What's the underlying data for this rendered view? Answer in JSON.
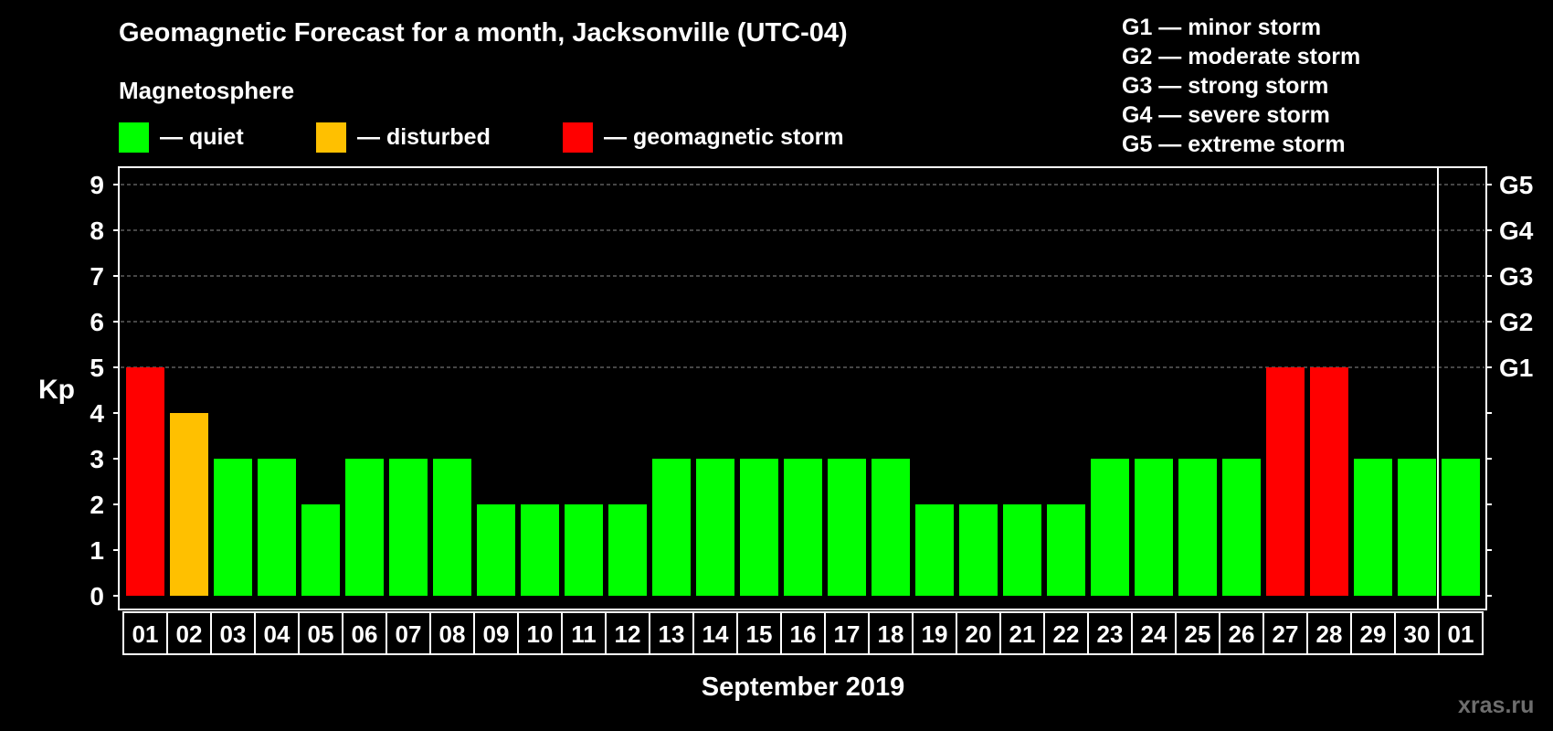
{
  "title": "Geomagnetic Forecast for a month, Jacksonville (UTC-04)",
  "legend": {
    "heading": "Magnetosphere",
    "items": [
      {
        "label": "— quiet",
        "color": "#00ff00"
      },
      {
        "label": "— disturbed",
        "color": "#ffc000"
      },
      {
        "label": "— geomagnetic storm",
        "color": "#ff0000"
      }
    ]
  },
  "g_scale": [
    "G1 — minor storm",
    "G2 — moderate storm",
    "G3 — strong storm",
    "G4 — severe storm",
    "G5 — extreme storm"
  ],
  "watermark": "xras.ru",
  "colors": {
    "quiet": "#00ff00",
    "disturbed": "#ffc000",
    "storm": "#ff0000",
    "background": "#000000",
    "grid": "#8c8c8c"
  },
  "chart_data": {
    "type": "bar",
    "ylabel": "Kp",
    "xlabel": "September 2019",
    "ylim": [
      0,
      9
    ],
    "yticks": [
      "0",
      "1",
      "2",
      "3",
      "4",
      "5",
      "6",
      "7",
      "8",
      "9"
    ],
    "right_axis_labels": [
      {
        "kp": 5,
        "label": "G1"
      },
      {
        "kp": 6,
        "label": "G2"
      },
      {
        "kp": 7,
        "label": "G3"
      },
      {
        "kp": 8,
        "label": "G4"
      },
      {
        "kp": 9,
        "label": "G5"
      }
    ],
    "grid_dashed_at": [
      5,
      6,
      7,
      8,
      9
    ],
    "categories": [
      "01",
      "02",
      "03",
      "04",
      "05",
      "06",
      "07",
      "08",
      "09",
      "10",
      "11",
      "12",
      "13",
      "14",
      "15",
      "16",
      "17",
      "18",
      "19",
      "20",
      "21",
      "22",
      "23",
      "24",
      "25",
      "26",
      "27",
      "28",
      "29",
      "30",
      "01"
    ],
    "values": [
      5,
      4,
      3,
      3,
      2,
      3,
      3,
      3,
      2,
      2,
      2,
      2,
      3,
      3,
      3,
      3,
      3,
      3,
      2,
      2,
      2,
      2,
      3,
      3,
      3,
      3,
      5,
      5,
      3,
      3,
      3
    ],
    "status": [
      "storm",
      "disturbed",
      "quiet",
      "quiet",
      "quiet",
      "quiet",
      "quiet",
      "quiet",
      "quiet",
      "quiet",
      "quiet",
      "quiet",
      "quiet",
      "quiet",
      "quiet",
      "quiet",
      "quiet",
      "quiet",
      "quiet",
      "quiet",
      "quiet",
      "quiet",
      "quiet",
      "quiet",
      "quiet",
      "quiet",
      "storm",
      "storm",
      "quiet",
      "quiet",
      "quiet"
    ],
    "month_separator_after_index": 29
  }
}
